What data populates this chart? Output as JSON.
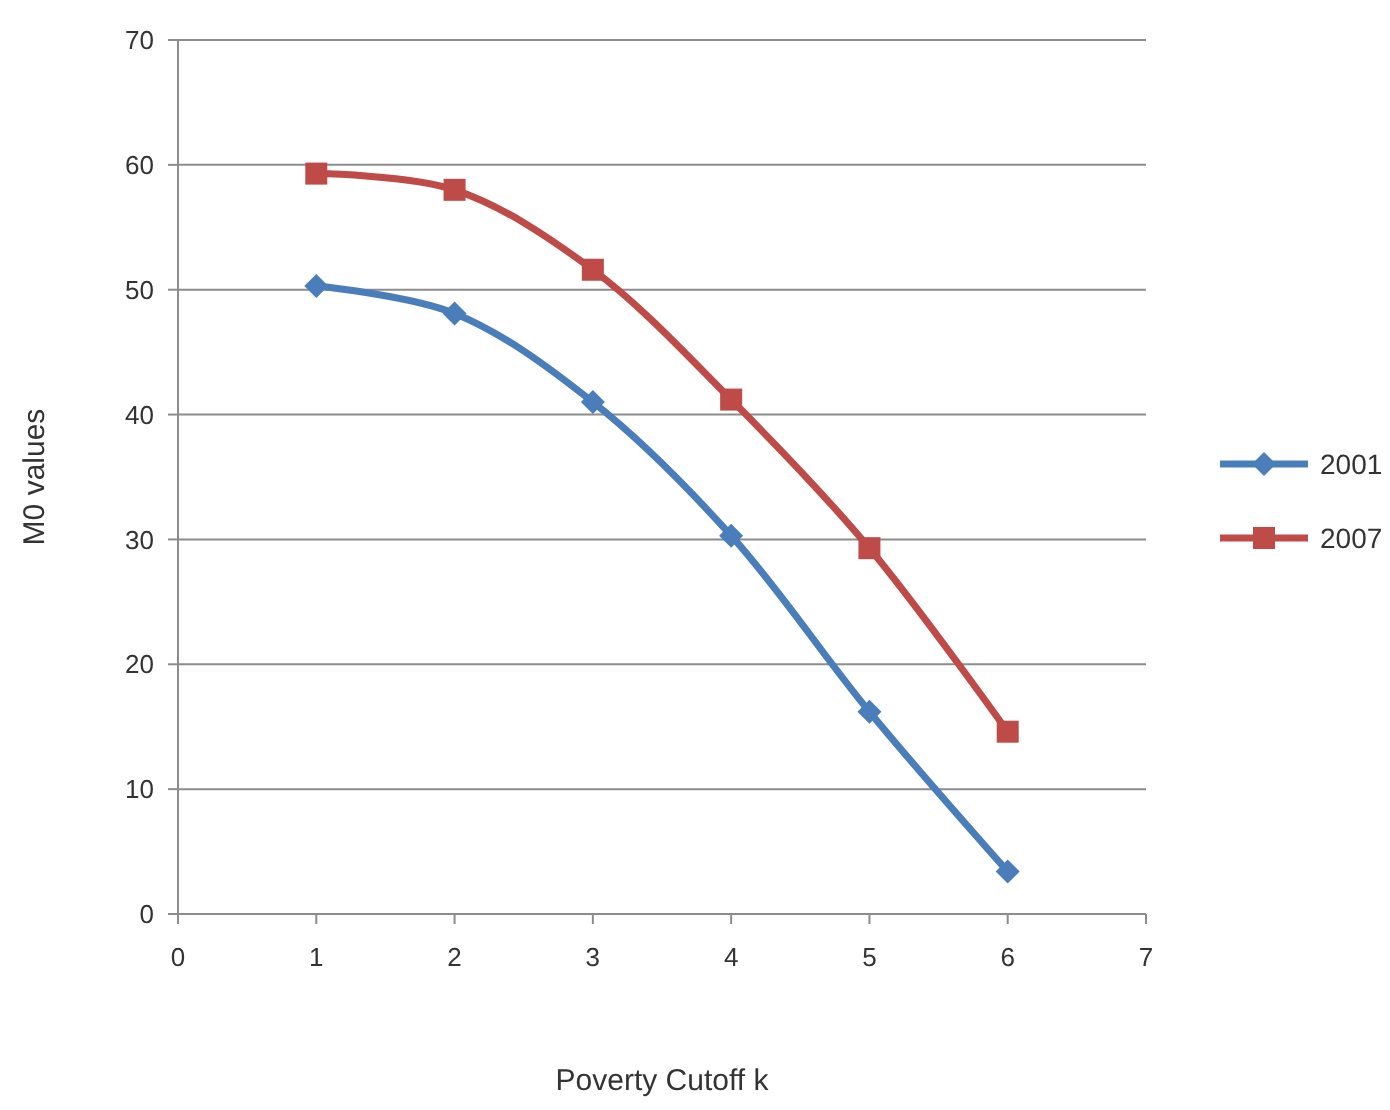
{
  "chart_data": {
    "type": "line",
    "xlabel": "Poverty Cutoff k",
    "ylabel": "M0 values",
    "x": [
      1,
      2,
      3,
      4,
      5,
      6
    ],
    "series": [
      {
        "name": "2001",
        "color": "#4a7ebb",
        "marker": "diamond",
        "values": [
          50.3,
          48.1,
          41,
          30.3,
          16.2,
          3.4
        ]
      },
      {
        "name": "2007",
        "color": "#be4b48",
        "marker": "square",
        "values": [
          59.3,
          58,
          51.6,
          41.2,
          29.3,
          14.6
        ]
      }
    ],
    "xlim": [
      0,
      7
    ],
    "xticks": [
      0,
      1,
      2,
      3,
      4,
      5,
      6,
      7
    ],
    "ylim": [
      0,
      70
    ],
    "yticks": [
      0,
      10,
      20,
      30,
      40,
      50,
      60,
      70
    ],
    "grid": "y",
    "legend": "right",
    "line_style": "solid"
  }
}
